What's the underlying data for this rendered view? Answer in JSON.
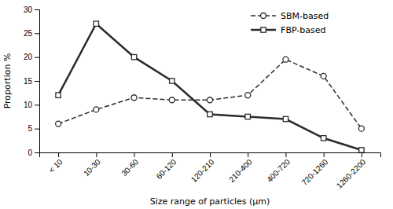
{
  "chart_data": {
    "type": "line",
    "xlabel": "Size range of particles (μm)",
    "ylabel": "Proportion %",
    "categories": [
      "< 10",
      "10-30",
      "30-60",
      "60-120",
      "120-210",
      "210-400",
      "400-720",
      "720-1260",
      "1260-2200"
    ],
    "series": [
      {
        "name": "SBM-based",
        "color": "#2b2b2b",
        "marker": "circle",
        "line_style": "dashed",
        "values": [
          6,
          9,
          11.5,
          11,
          11,
          12,
          19.5,
          16,
          5
        ]
      },
      {
        "name": "FBP-based",
        "color": "#2b2b2b",
        "marker": "square",
        "line_style": "solid",
        "values": [
          12,
          27,
          20,
          15,
          8,
          7.5,
          7,
          3,
          0.5
        ]
      }
    ],
    "ylim": [
      0,
      30
    ],
    "yticks": [
      0,
      5,
      10,
      15,
      20,
      25,
      30
    ],
    "grid": false,
    "legend": "upper right"
  }
}
